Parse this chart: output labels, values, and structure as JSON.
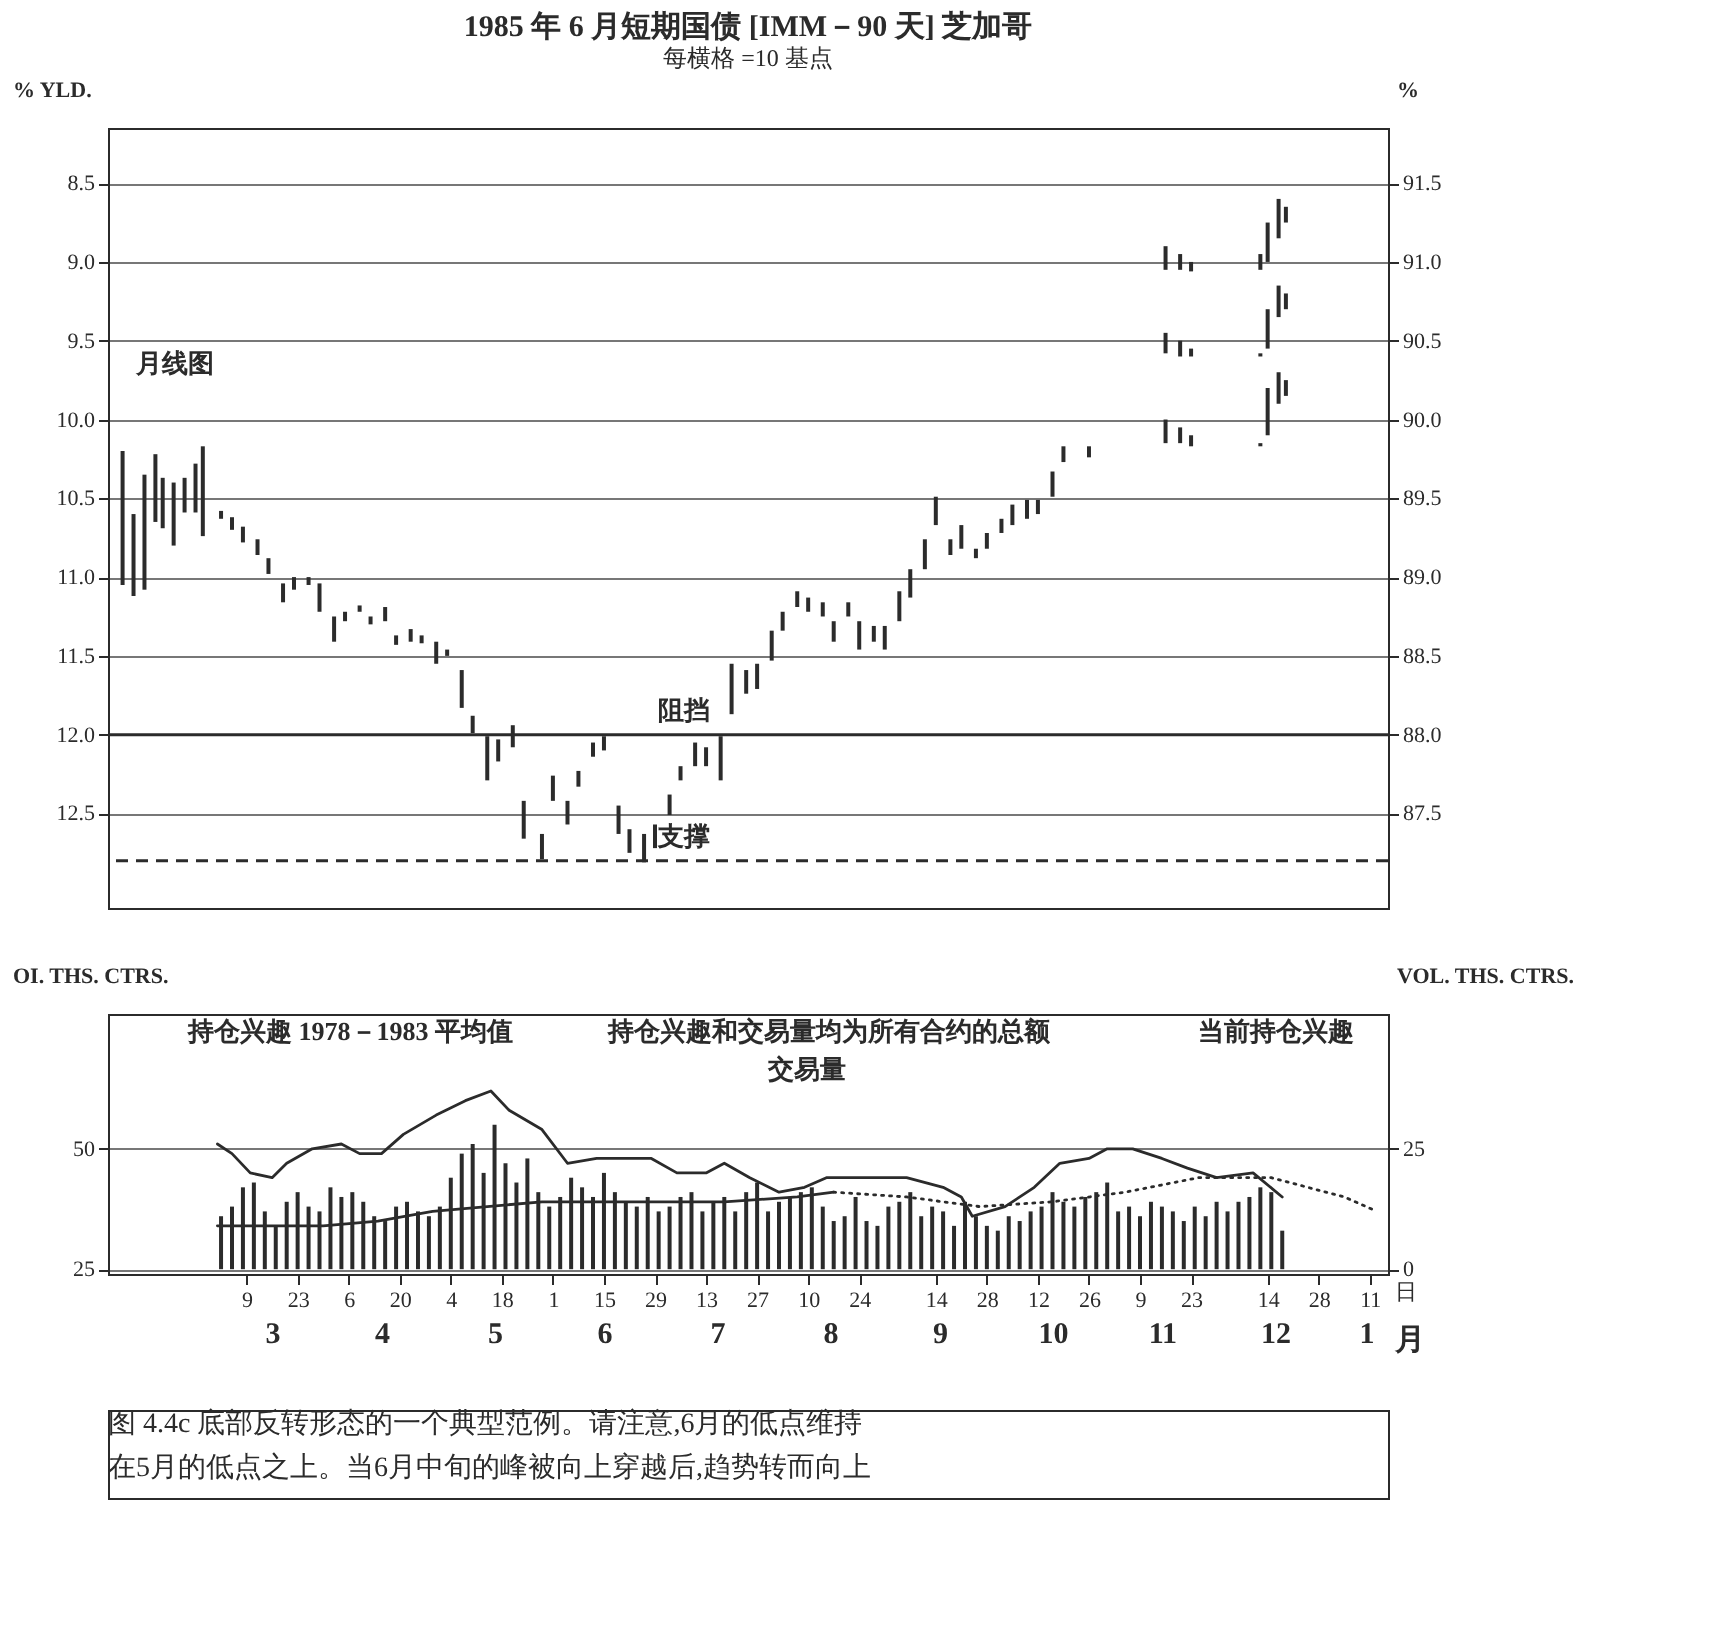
{
  "chart_data": [
    {
      "type": "bar",
      "title": "1985 年 6 月短期国债 [IMM－90 天] 芝加哥",
      "subtitle": "每横格 =10 基点",
      "ylabel": "% YLD.",
      "y2label": "%",
      "xlim": [
        "1984-01-31",
        "1985-01-16"
      ],
      "ylim": [
        13.1,
        8.15
      ],
      "yticks": [
        8.5,
        {
          "value": 9,
          "label": "9.0"
        },
        9.5,
        {
          "value": 10,
          "label": "10.0"
        },
        10.5,
        {
          "value": 11,
          "label": "11.0"
        },
        11.5,
        {
          "value": 12,
          "label": "12.0"
        },
        12.5
      ],
      "y2lim": [
        86.9,
        91.85
      ],
      "y2ticks": [
        91.5,
        {
          "value": 91,
          "label": "91.0"
        },
        90.5,
        {
          "value": 90,
          "label": "90.0"
        },
        89.5,
        {
          "value": 89,
          "label": "89.0"
        },
        88.5,
        {
          "value": 88,
          "label": "88.0"
        },
        87.5
      ],
      "grid": "y",
      "tick_labels": "y",
      "series": [
        {
          "color": "#2b2b2b",
          "x": [
            "1984-02-04",
            "1984-02-07",
            "1984-02-10",
            "1984-02-13",
            "1984-02-15",
            "1984-02-18",
            "1984-02-21",
            "1984-02-24",
            "1984-02-26"
          ],
          "base": [
            10.2,
            10.6,
            10.35,
            10.22,
            10.37,
            10.4,
            10.37,
            10.28,
            10.17
          ],
          "values": [
            0.85,
            0.52,
            0.73,
            0.43,
            0.32,
            0.4,
            0.22,
            0.31,
            0.57
          ]
        },
        {
          "color": "#2b2b2b",
          "x": [
            "1984-03-02",
            "1984-03-05",
            "1984-03-08",
            "1984-03-12",
            "1984-03-15",
            "1984-03-19",
            "1984-03-22",
            "1984-03-26",
            "1984-03-29",
            "1984-04-02",
            "1984-04-05",
            "1984-04-09",
            "1984-04-12",
            "1984-04-16",
            "1984-04-19",
            "1984-04-23",
            "1984-04-26",
            "1984-04-30",
            "1984-05-03",
            "1984-05-07",
            "1984-05-10",
            "1984-05-14",
            "1984-05-17",
            "1984-05-21",
            "1984-05-24",
            "1984-05-29",
            "1984-06-01",
            "1984-06-05",
            "1984-06-08",
            "1984-06-12",
            "1984-06-15",
            "1984-06-19",
            "1984-06-22",
            "1984-06-26",
            "1984-06-29",
            "1984-07-03",
            "1984-07-06",
            "1984-07-10",
            "1984-07-13",
            "1984-07-17",
            "1984-07-20",
            "1984-07-24",
            "1984-07-27",
            "1984-07-31",
            "1984-08-03",
            "1984-08-07",
            "1984-08-10",
            "1984-08-14",
            "1984-08-17",
            "1984-08-21",
            "1984-08-24",
            "1984-08-28",
            "1984-08-31",
            "1984-09-04",
            "1984-09-07",
            "1984-09-11",
            "1984-09-14",
            "1984-09-18",
            "1984-09-21",
            "1984-09-25",
            "1984-09-28",
            "1984-10-02",
            "1984-10-05",
            "1984-10-09",
            "1984-10-12",
            "1984-10-16",
            "1984-10-19",
            "1984-10-26"
          ],
          "base": [
            10.58,
            10.62,
            10.68,
            10.76,
            10.88,
            11.04,
            11.0,
            11.0,
            11.04,
            11.25,
            11.22,
            11.18,
            11.25,
            11.19,
            11.37,
            11.33,
            11.37,
            11.41,
            11.46,
            11.59,
            11.88,
            12.01,
            12.03,
            11.94,
            12.42,
            12.63,
            12.26,
            12.42,
            12.23,
            12.05,
            12.01,
            12.45,
            12.6,
            12.63,
            12.57,
            12.38,
            12.2,
            12.05,
            12.08,
            12.01,
            11.55,
            11.59,
            11.55,
            11.34,
            11.22,
            11.09,
            11.13,
            11.16,
            11.28,
            11.16,
            11.28,
            11.31,
            11.31,
            11.09,
            10.95,
            10.76,
            10.49,
            10.76,
            10.67,
            10.82,
            10.72,
            10.63,
            10.54,
            10.51,
            10.51,
            10.33,
            10.17,
            10.17
          ],
          "values": [
            0.05,
            0.08,
            0.1,
            0.1,
            0.1,
            0.12,
            0.08,
            0.05,
            0.18,
            0.16,
            0.06,
            0.04,
            0.05,
            0.09,
            0.06,
            0.08,
            0.05,
            0.14,
            0.04,
            0.24,
            0.11,
            0.28,
            0.14,
            0.14,
            0.24,
            0.16,
            0.16,
            0.15,
            0.1,
            0.09,
            0.09,
            0.18,
            0.15,
            0.18,
            0.15,
            0.13,
            0.09,
            0.15,
            0.12,
            0.28,
            0.32,
            0.15,
            0.16,
            0.19,
            0.12,
            0.1,
            0.09,
            0.09,
            0.13,
            0.09,
            0.18,
            0.1,
            0.15,
            0.19,
            0.18,
            0.19,
            0.18,
            0.1,
            0.15,
            0.06,
            0.1,
            0.09,
            0.13,
            0.12,
            0.09,
            0.16,
            0.1,
            0.07
          ]
        },
        {
          "color": "#2b2b2b",
          "x": [
            "1984-11-16",
            "1984-11-20",
            "1984-11-23",
            "1984-12-12",
            "1984-12-14",
            "1984-12-17",
            "1984-12-19"
          ],
          "base": [
            8.9,
            8.95,
            9.0,
            8.95,
            8.75,
            8.6,
            8.65
          ],
          "values": [
            0.15,
            0.1,
            0.06,
            0.1,
            0.25,
            0.25,
            0.1
          ]
        },
        {
          "color": "#2b2b2b",
          "x": [
            "1984-11-16",
            "1984-11-20",
            "1984-11-23",
            "1984-12-12",
            "1984-12-14",
            "1984-12-17",
            "1984-12-19"
          ],
          "base": [
            9.45,
            9.5,
            9.55,
            9.58,
            9.3,
            9.15,
            9.2
          ],
          "values": [
            0.13,
            0.1,
            0.05,
            0.02,
            0.25,
            0.2,
            0.1
          ]
        },
        {
          "color": "#2b2b2b",
          "x": [
            "1984-11-16",
            "1984-11-20",
            "1984-11-23",
            "1984-12-12",
            "1984-12-14",
            "1984-12-17",
            "1984-12-19"
          ],
          "base": [
            10.0,
            10.05,
            10.1,
            10.15,
            9.8,
            9.7,
            9.75
          ],
          "values": [
            0.15,
            0.1,
            0.07,
            0.02,
            0.3,
            0.2,
            0.1
          ]
        }
      ],
      "ref_lines": [
        {
          "axis": "y",
          "value": 12.0,
          "label": "阻挡",
          "color": "#2b2b2b",
          "line_style": "solid"
        },
        {
          "axis": "y",
          "value": 12.8,
          "label": "支撑",
          "color": "#2b2b2b",
          "line_style": "dashed"
        }
      ],
      "annotations": [
        "月线图"
      ]
    },
    {
      "type": "line",
      "ylabel": "OI. THS. CTRS.",
      "y2label": "VOL. THS. CTRS.",
      "xlim": [
        "1984-01-31",
        "1985-01-16"
      ],
      "ylim": [
        24,
        78
      ],
      "yticks": [
        50,
        25
      ],
      "y2lim": [
        -1,
        53
      ],
      "y2ticks": [
        25,
        0
      ],
      "xticks": [
        {
          "value": "1984-03-09",
          "label": "9"
        },
        {
          "value": "1984-03-23",
          "label": "23"
        },
        {
          "value": "1984-04-06",
          "label": "6"
        },
        {
          "value": "1984-04-20",
          "label": "20"
        },
        {
          "value": "1984-05-04",
          "label": "4"
        },
        {
          "value": "1984-05-18",
          "label": "18"
        },
        {
          "value": "1984-06-01",
          "label": "1"
        },
        {
          "value": "1984-06-15",
          "label": "15"
        },
        {
          "value": "1984-06-29",
          "label": "29"
        },
        {
          "value": "1984-07-13",
          "label": "13"
        },
        {
          "value": "1984-07-27",
          "label": "27"
        },
        {
          "value": "1984-08-10",
          "label": "10"
        },
        {
          "value": "1984-08-24",
          "label": "24"
        },
        {
          "value": "1984-09-14",
          "label": "14"
        },
        {
          "value": "1984-09-28",
          "label": "28"
        },
        {
          "value": "1984-10-12",
          "label": "12"
        },
        {
          "value": "1984-10-26",
          "label": "26"
        },
        {
          "value": "1984-11-09",
          "label": "9"
        },
        {
          "value": "1984-11-23",
          "label": "23"
        },
        {
          "value": "1984-12-14",
          "label": "14"
        },
        {
          "value": "1984-12-28",
          "label": "28"
        },
        {
          "value": "1985-01-11",
          "label": "11"
        }
      ],
      "xlabel": "日",
      "x2label": "月",
      "x2lim": [
        "1984-01-31",
        "1985-01-16"
      ],
      "x2ticks": [
        {
          "value": "1984-03-16",
          "label": "3"
        },
        {
          "value": "1984-04-15",
          "label": "4"
        },
        {
          "value": "1984-05-16",
          "label": "5"
        },
        {
          "value": "1984-06-15",
          "label": "6"
        },
        {
          "value": "1984-07-16",
          "label": "7"
        },
        {
          "value": "1984-08-16",
          "label": "8"
        },
        {
          "value": "1984-09-15",
          "label": "9"
        },
        {
          "value": "1984-10-16",
          "label": "10"
        },
        {
          "value": "1984-11-15",
          "label": "11"
        },
        {
          "value": "1984-12-16",
          "label": "12"
        },
        {
          "value": "1985-01-10",
          "label": "1"
        }
      ],
      "grid": "y",
      "series": [
        {
          "type": "bar",
          "axis": "y2",
          "color": "#2b2b2b",
          "x": [
            "1984-03-02",
            "1984-03-05",
            "1984-03-08",
            "1984-03-11",
            "1984-03-14",
            "1984-03-17",
            "1984-03-20",
            "1984-03-23",
            "1984-03-26",
            "1984-03-29",
            "1984-04-01",
            "1984-04-04",
            "1984-04-07",
            "1984-04-10",
            "1984-04-13",
            "1984-04-16",
            "1984-04-19",
            "1984-04-22",
            "1984-04-25",
            "1984-04-28",
            "1984-05-01",
            "1984-05-04",
            "1984-05-07",
            "1984-05-10",
            "1984-05-13",
            "1984-05-16",
            "1984-05-19",
            "1984-05-22",
            "1984-05-25",
            "1984-05-28",
            "1984-05-31",
            "1984-06-03",
            "1984-06-06",
            "1984-06-09",
            "1984-06-12",
            "1984-06-15",
            "1984-06-18",
            "1984-06-21",
            "1984-06-24",
            "1984-06-27",
            "1984-06-30",
            "1984-07-03",
            "1984-07-06",
            "1984-07-09",
            "1984-07-12",
            "1984-07-15",
            "1984-07-18",
            "1984-07-21",
            "1984-07-24",
            "1984-07-27",
            "1984-07-30",
            "1984-08-02",
            "1984-08-05",
            "1984-08-08",
            "1984-08-11",
            "1984-08-14",
            "1984-08-17",
            "1984-08-20",
            "1984-08-23",
            "1984-08-26",
            "1984-08-29",
            "1984-09-01",
            "1984-09-04",
            "1984-09-07",
            "1984-09-10",
            "1984-09-13",
            "1984-09-16",
            "1984-09-19",
            "1984-09-22",
            "1984-09-25",
            "1984-09-28",
            "1984-10-01",
            "1984-10-04",
            "1984-10-07",
            "1984-10-10",
            "1984-10-13",
            "1984-10-16",
            "1984-10-19",
            "1984-10-22",
            "1984-10-25",
            "1984-10-28",
            "1984-10-31",
            "1984-11-03",
            "1984-11-06",
            "1984-11-09",
            "1984-11-12",
            "1984-11-15",
            "1984-11-18",
            "1984-11-21",
            "1984-11-24",
            "1984-11-27",
            "1984-11-30",
            "1984-12-03",
            "1984-12-06",
            "1984-12-09",
            "1984-12-12",
            "1984-12-15",
            "1984-12-18"
          ],
          "values": [
            11,
            13,
            17,
            18,
            12,
            9,
            14,
            16,
            13,
            12,
            17,
            15,
            16,
            14,
            11,
            10,
            13,
            14,
            12,
            11,
            13,
            19,
            24,
            26,
            20,
            30,
            22,
            18,
            23,
            16,
            13,
            15,
            19,
            17,
            15,
            20,
            16,
            14,
            13,
            15,
            12,
            13,
            15,
            16,
            12,
            14,
            15,
            12,
            16,
            18,
            12,
            14,
            15,
            16,
            17,
            13,
            10,
            11,
            15,
            10,
            9,
            13,
            14,
            16,
            11,
            13,
            12,
            9,
            14,
            11,
            9,
            8,
            11,
            10,
            12,
            13,
            16,
            14,
            13,
            15,
            16,
            18,
            12,
            13,
            11,
            14,
            13,
            12,
            10,
            13,
            11,
            14,
            12,
            14,
            15,
            17,
            16,
            8
          ]
        },
        {
          "color": "#2b2b2b",
          "line_style": "solid",
          "x": [
            "1984-03-01",
            "1984-03-05",
            "1984-03-10",
            "1984-03-16",
            "1984-03-20",
            "1984-03-27",
            "1984-04-04",
            "1984-04-09",
            "1984-04-15",
            "1984-04-21",
            "1984-04-30",
            "1984-05-08",
            "1984-05-15",
            "1984-05-20",
            "1984-05-29",
            "1984-06-05",
            "1984-06-13",
            "1984-06-20",
            "1984-06-28",
            "1984-07-05",
            "1984-07-13",
            "1984-07-18",
            "1984-07-25",
            "1984-08-02",
            "1984-08-09",
            "1984-08-15",
            "1984-08-27",
            "1984-09-06",
            "1984-09-16",
            "1984-09-21",
            "1984-09-24",
            "1984-10-03",
            "1984-10-11",
            "1984-10-18",
            "1984-10-26",
            "1984-10-31",
            "1984-11-07",
            "1984-11-15",
            "1984-11-22",
            "1984-11-30",
            "1984-12-10",
            "1984-12-18"
          ],
          "values": [
            51,
            49,
            45,
            44,
            47,
            50,
            51,
            49,
            49,
            53,
            57,
            60,
            62,
            58,
            54,
            47,
            48,
            48,
            48,
            45,
            45,
            47,
            44,
            41,
            42,
            44,
            44,
            44,
            42,
            40,
            36,
            38,
            42,
            47,
            48,
            50,
            50,
            48,
            46,
            44,
            45,
            40
          ]
        },
        {
          "color": "#2b2b2b",
          "line_style": "solid",
          "x": [
            "1984-03-01",
            "1984-03-15",
            "1984-03-30",
            "1984-04-14",
            "1984-04-29",
            "1984-05-14",
            "1984-05-29",
            "1984-06-13",
            "1984-06-28",
            "1984-07-18",
            "1984-08-07",
            "1984-08-17"
          ],
          "values": [
            34,
            34,
            34,
            35,
            37,
            38,
            39,
            39,
            39,
            39,
            40,
            41
          ]
        },
        {
          "color": "#2b2b2b",
          "line_style": "dotted",
          "x": [
            "1984-08-17",
            "1984-09-06",
            "1984-09-26",
            "1984-10-16",
            "1984-11-05",
            "1984-11-25",
            "1984-12-15",
            "1984-12-25",
            "1985-01-04",
            "1985-01-13"
          ],
          "values": [
            41,
            40,
            38,
            39,
            41,
            44,
            44,
            42,
            40,
            37
          ]
        }
      ],
      "annotations": [
        "持仓兴趣 1978－1983 平均值",
        "持仓兴趣和交易量均为所有合约的总额",
        "当前持仓兴趣",
        "交易量",
        "图 4.4c  底部反转形态的一个典型范例。请注意,6月的低点维持",
        "在5月的低点之上。当6月中旬的峰被向上穿越后,趋势转而向上"
      ]
    }
  ]
}
